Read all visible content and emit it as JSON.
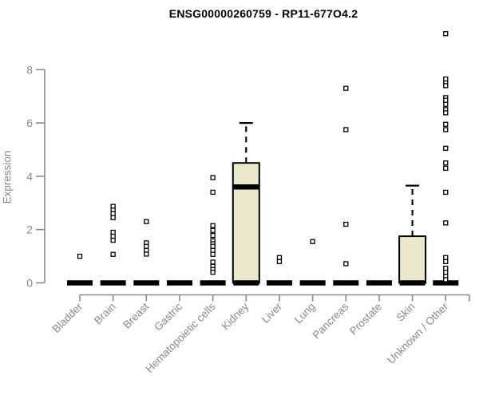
{
  "chart_data": {
    "type": "boxplot",
    "title": "ENSG00000260759 - RP11-677O4.2",
    "ylabel": "Expression",
    "xlabel": "",
    "yticks": [
      0,
      2,
      4,
      6,
      8
    ],
    "ylim": [
      0,
      9.45
    ],
    "grid": false,
    "legend": "none",
    "marker": "open-square",
    "box_fill": "#ECE8CC",
    "box_stroke": "#000000",
    "axis_color": "#8c8c8c",
    "label_color": "#8a8a8a",
    "categories": [
      "Bladder",
      "Brain",
      "Breast",
      "Gastric",
      "Hematopoietic cells",
      "Kidney",
      "Liver",
      "Lung",
      "Pancreas",
      "Prostate",
      "Skin",
      "Unknown / Other"
    ],
    "series": [
      {
        "category": "Bladder",
        "q1": 0,
        "median": 0,
        "q3": 0,
        "whisker_low": 0,
        "whisker_high": 0,
        "outliers": [
          1.0
        ]
      },
      {
        "category": "Brain",
        "q1": 0,
        "median": 0,
        "q3": 0,
        "whisker_low": 0,
        "whisker_high": 0,
        "outliers": [
          2.87,
          2.73,
          2.6,
          2.45,
          1.9,
          1.75,
          1.6,
          1.07
        ]
      },
      {
        "category": "Breast",
        "q1": 0,
        "median": 0,
        "q3": 0,
        "whisker_low": 0,
        "whisker_high": 0,
        "outliers": [
          2.3,
          1.5,
          1.37,
          1.22,
          1.08
        ]
      },
      {
        "category": "Gastric",
        "q1": 0,
        "median": 0,
        "q3": 0,
        "whisker_low": 0,
        "whisker_high": 0,
        "outliers": []
      },
      {
        "category": "Hematopoietic cells",
        "q1": 0,
        "median": 0,
        "q3": 0,
        "whisker_low": 0,
        "whisker_high": 0,
        "outliers": [
          3.95,
          3.4,
          2.15,
          1.97,
          1.78,
          1.58,
          1.47,
          1.37,
          1.22,
          1.07,
          0.78,
          0.62,
          0.5,
          0.4
        ]
      },
      {
        "category": "Kidney",
        "q1": 0,
        "median": 3.6,
        "q3": 4.5,
        "whisker_low": 0,
        "whisker_high": 6.0,
        "outliers": []
      },
      {
        "category": "Liver",
        "q1": 0,
        "median": 0,
        "q3": 0,
        "whisker_low": 0,
        "whisker_high": 0,
        "outliers": [
          0.95,
          0.8
        ]
      },
      {
        "category": "Lung",
        "q1": 0,
        "median": 0,
        "q3": 0,
        "whisker_low": 0,
        "whisker_high": 0,
        "outliers": [
          1.55
        ]
      },
      {
        "category": "Pancreas",
        "q1": 0,
        "median": 0,
        "q3": 0,
        "whisker_low": 0,
        "whisker_high": 0,
        "outliers": [
          7.3,
          5.75,
          2.2,
          0.72
        ]
      },
      {
        "category": "Prostate",
        "q1": 0,
        "median": 0,
        "q3": 0,
        "whisker_low": 0,
        "whisker_high": 0,
        "outliers": []
      },
      {
        "category": "Skin",
        "q1": 0,
        "median": 0,
        "q3": 1.75,
        "whisker_low": 0,
        "whisker_high": 3.65,
        "outliers": []
      },
      {
        "category": "Unknown / Other",
        "q1": 0,
        "median": 0,
        "q3": 0,
        "whisker_low": 0,
        "whisker_high": 0,
        "outliers": [
          9.35,
          7.65,
          7.5,
          7.4,
          6.95,
          6.85,
          6.7,
          6.5,
          6.38,
          5.95,
          5.75,
          5.05,
          4.5,
          4.3,
          3.4,
          2.25,
          0.95,
          0.8,
          0.55,
          0.4,
          0.25,
          0.12
        ]
      }
    ]
  }
}
